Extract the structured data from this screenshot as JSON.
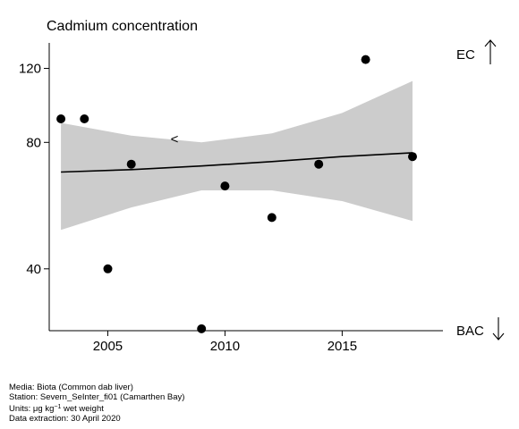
{
  "chart_data": {
    "type": "scatter",
    "title": "Cadmium concentration",
    "x_ticks": [
      2005,
      2010,
      2015
    ],
    "y_ticks": [
      40,
      80,
      120
    ],
    "y_scale": "log",
    "xlim": [
      2002.5,
      2019.3
    ],
    "ylim": [
      28.5,
      138
    ],
    "points": [
      {
        "x": 2003,
        "y": 91
      },
      {
        "x": 2004,
        "y": 91
      },
      {
        "x": 2005,
        "y": 40
      },
      {
        "x": 2006,
        "y": 71
      },
      {
        "x": 2009,
        "y": 28.8
      },
      {
        "x": 2010,
        "y": 63
      },
      {
        "x": 2012,
        "y": 53
      },
      {
        "x": 2014,
        "y": 71
      },
      {
        "x": 2016,
        "y": 126
      },
      {
        "x": 2018,
        "y": 74
      }
    ],
    "less_than_marker": {
      "x": 2008,
      "y": 81.5,
      "label": "<"
    },
    "trend": {
      "x": [
        2003,
        2006,
        2009,
        2012,
        2015,
        2018
      ],
      "y": [
        68.0,
        68.9,
        70.3,
        72.0,
        74.0,
        75.6
      ]
    },
    "confidence_band": {
      "x": [
        2003,
        2006,
        2009,
        2012,
        2015,
        2018
      ],
      "upper": [
        89.0,
        83.0,
        80.0,
        84.0,
        94.0,
        112.0
      ],
      "lower": [
        49.5,
        56.0,
        61.5,
        61.5,
        58.0,
        52.0
      ]
    },
    "right_labels": {
      "top": "EC",
      "bottom": "BAC"
    },
    "grid": false,
    "colors": {
      "points": "#000000",
      "band": "#cccccc",
      "line": "#000000"
    }
  },
  "footer": {
    "media": "Media: Biota (Common dab liver)",
    "station": "Station: Severn_SeInter_fi01 (Camarthen Bay)",
    "units_prefix": "Units:  μg kg",
    "units_sup": "−1",
    "units_suffix": " wet weight",
    "extraction": "Data extraction: 30 April 2020"
  }
}
